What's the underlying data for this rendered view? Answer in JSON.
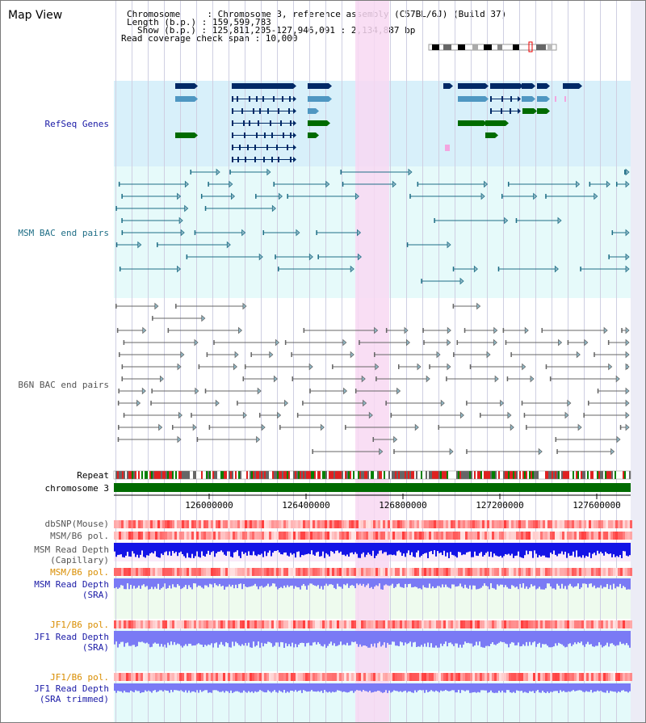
{
  "title": "Map View",
  "header": {
    "chromosome": "Chromosome     : Chromosome 3, reference assembly (C57BL/6J) (Build 37)",
    "length": "Length (b.p.) : 159,599,783",
    "show": "Show (b.p.) : 125,811,205-127,946,091 : 2,134,887 bp",
    "coverage": "Read coverage check span : 10,000"
  },
  "tracks": {
    "refseq": "RefSeq Genes",
    "msm_bac": "MSM BAC end pairs",
    "b6n_bac": "B6N BAC end pairs",
    "repeat": "Repeat",
    "chromosome": "chromosome 3",
    "dbsnp": "dbSNP(Mouse)",
    "msm_b6_pol_1": "MSM/B6 pol.",
    "msm_depth_cap_1": "MSM Read Depth",
    "msm_depth_cap_2": "(Capillary)",
    "msm_b6_pol_2": "MSM/B6 pol.",
    "msm_depth_sra_1": "MSM Read Depth",
    "msm_depth_sra_2": "(SRA)",
    "jf1_b6_pol_1": "JF1/B6 pol.",
    "jf1_depth_sra_1": "JF1 Read Depth",
    "jf1_depth_sra_2": "(SRA)",
    "jf1_b6_pol_2": "JF1/B6 pol.",
    "jf1_depth_trim_1": "JF1 Read Depth",
    "jf1_depth_trim_2": "(SRA trimmed)"
  },
  "ruler": {
    "ticks": [
      "126000000",
      "126400000",
      "126800000",
      "127200000",
      "127600000"
    ]
  },
  "colors": {
    "refseq_bg": "#d8f0fa",
    "msm_bg": "#e6fafa",
    "highlight": "#f8d8f2",
    "gene_dark": "#002966",
    "gene_mid": "#4f97c2",
    "gene_green": "#006b00",
    "msm_bac": "#1f6e86",
    "b6n_bac": "#666666",
    "chromosome": "#006b00",
    "depth_dark": "#1414e6",
    "depth_light": "#7a7af5",
    "label_blue": "#1a1aa6",
    "label_orange": "#d98d00"
  }
}
